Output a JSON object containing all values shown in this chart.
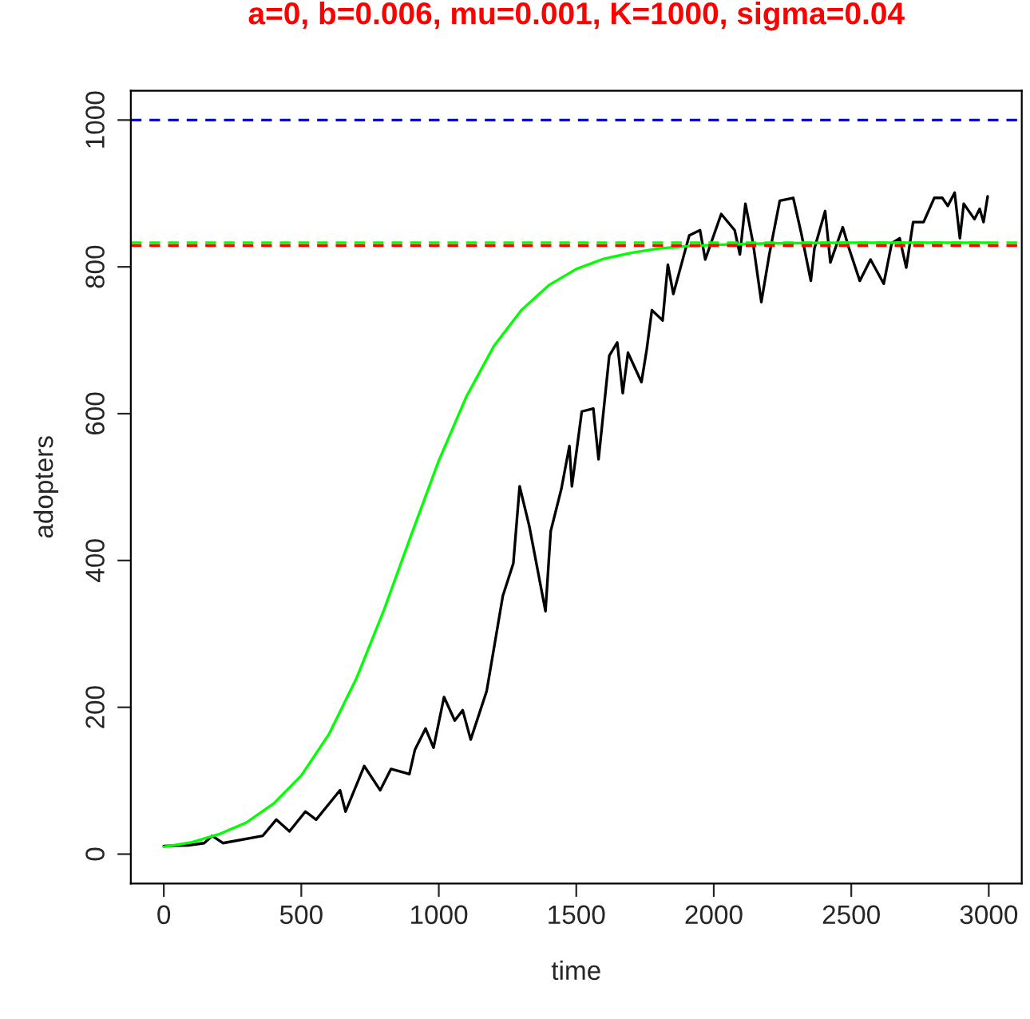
{
  "chart_data": {
    "type": "line",
    "title": "a=0, b=0.006, mu=0.001, K=1000, sigma=0.04",
    "xlabel": "time",
    "ylabel": "adopters",
    "series": [
      {
        "color": "#000000",
        "x": [
          0,
          89,
          147,
          176,
          215,
          360,
          409,
          457,
          515,
          554,
          641,
          661,
          729,
          787,
          826,
          893,
          913,
          952,
          981,
          1019,
          1058,
          1087,
          1116,
          1174,
          1233,
          1271,
          1294,
          1329,
          1388,
          1407,
          1446,
          1475,
          1484,
          1520,
          1562,
          1581,
          1620,
          1649,
          1669,
          1688,
          1737,
          1756,
          1775,
          1814,
          1833,
          1853,
          1911,
          1950,
          1969,
          2027,
          2076,
          2095,
          2115,
          2143,
          2173,
          2202,
          2240,
          2289,
          2318,
          2353,
          2366,
          2405,
          2424,
          2469,
          2492,
          2531,
          2570,
          2618,
          2647,
          2676,
          2700,
          2725,
          2763,
          2802,
          2831,
          2851,
          2876,
          2895,
          2909,
          2948,
          2967,
          2981,
          2996
        ],
        "values": [
          11,
          12,
          15,
          25,
          15,
          25,
          47,
          31,
          58,
          47,
          87,
          58,
          120,
          87,
          116,
          109,
          142,
          171,
          145,
          214,
          182,
          196,
          156,
          222,
          352,
          396,
          501,
          447,
          331,
          440,
          498,
          556,
          501,
          603,
          607,
          538,
          679,
          697,
          628,
          683,
          643,
          687,
          741,
          727,
          803,
          763,
          843,
          850,
          810,
          872,
          850,
          817,
          886,
          832,
          752,
          817,
          890,
          894,
          846,
          781,
          825,
          876,
          806,
          854,
          825,
          781,
          810,
          777,
          832,
          839,
          799,
          861,
          861,
          894,
          894,
          883,
          901,
          839,
          886,
          865,
          879,
          861,
          896
        ]
      },
      {
        "color": "#00ff00",
        "x": [
          0,
          100,
          200,
          300,
          400,
          500,
          600,
          700,
          800,
          900,
          1000,
          1100,
          1200,
          1300,
          1400,
          1500,
          1600,
          1700,
          1800,
          1900,
          2000,
          2200,
          2500,
          3000
        ],
        "values": [
          10,
          16,
          27,
          43,
          69,
          107,
          163,
          239,
          332,
          435,
          536,
          623,
          692,
          741,
          775,
          797,
          811,
          819,
          825,
          828,
          830,
          832,
          833,
          833
        ]
      }
    ],
    "ref_lines": [
      {
        "axis": "y",
        "value": 1000,
        "color": "#0000ff",
        "line_style": "dashed"
      },
      {
        "axis": "y",
        "value": 833,
        "color": "#00ff00",
        "line_style": "dashed"
      },
      {
        "axis": "y",
        "value": 829,
        "color": "#ff0000",
        "line_style": "dashed"
      }
    ],
    "xlim": [
      -120,
      3120
    ],
    "ylim": [
      -40,
      1040
    ],
    "xticks": [
      0,
      500,
      1000,
      1500,
      2000,
      2500,
      3000
    ],
    "yticks": [
      0,
      200,
      400,
      600,
      800,
      1000
    ],
    "grid": false,
    "legend": false,
    "marker": "none",
    "line_style": "solid"
  }
}
